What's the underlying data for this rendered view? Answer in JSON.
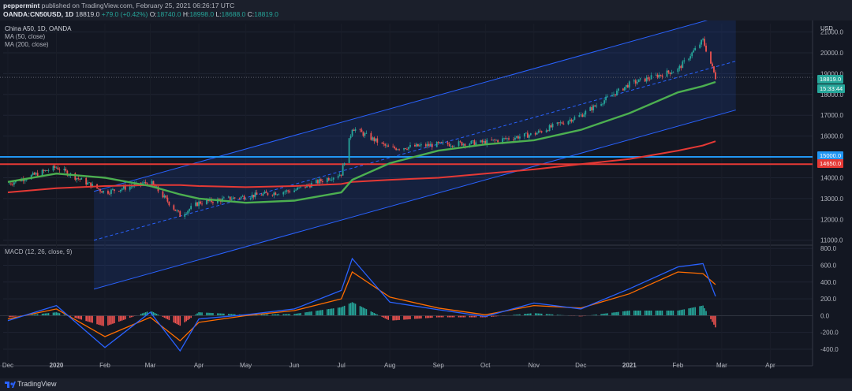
{
  "header": {
    "author": "peppermint",
    "published": "published on TradingView.com, February 25, 2021 06:26:17 UTC",
    "symbol_line": "OANDA:CN50USD, 1D",
    "last": "18819.0",
    "change": "+79.0 (+0.42%)",
    "o_label": "O:",
    "o_val": "18740.0",
    "h_label": "H:",
    "h_val": "18998.0",
    "l_label": "L:",
    "l_val": "18688.0",
    "c_label": "C:",
    "c_val": "18819.0"
  },
  "legend": {
    "main_title": "China A50, 1D, OANDA",
    "ma50": "MA (50, close)",
    "ma200": "MA (200, close)",
    "macd": "MACD (12, 26, close, 9)"
  },
  "price_tags": {
    "currency": "USD",
    "last": "18819.0",
    "countdown": "15:33:44",
    "level_a": "15000.0",
    "level_b": "14650.0"
  },
  "footer": {
    "brand": "TradingView"
  },
  "colors": {
    "background": "#131722",
    "up": "#26a69a",
    "down": "#ef5350",
    "ma50": "#4caf50",
    "ma200": "#e53935",
    "channel": "#2962ff",
    "level_a": "#2196f3",
    "level_b": "#e53935",
    "macd_line": "#2962ff",
    "signal_line": "#ff6d00"
  },
  "chart_data": [
    {
      "type": "line",
      "title": "China A50, 1D, OANDA",
      "x": [
        "2019-12",
        "2020-01",
        "2020-02",
        "2020-03",
        "2020-03-20",
        "2020-04",
        "2020-05",
        "2020-06",
        "2020-07",
        "2020-07-08",
        "2020-08",
        "2020-09",
        "2020-10",
        "2020-11",
        "2020-12",
        "2021-01",
        "2021-02",
        "2021-02-17",
        "2021-02-25"
      ],
      "series": [
        {
          "name": "China A50",
          "values": [
            13700,
            14500,
            13300,
            13800,
            12200,
            12800,
            13100,
            13400,
            14200,
            16400,
            15400,
            15600,
            15700,
            16100,
            17000,
            18500,
            19200,
            20600,
            18819
          ]
        },
        {
          "name": "MA (50, close)",
          "values": [
            13800,
            14200,
            14000,
            13600,
            13200,
            13000,
            12800,
            12900,
            13300,
            13900,
            14700,
            15300,
            15600,
            15800,
            16300,
            17100,
            18100,
            18400,
            18600
          ]
        },
        {
          "name": "MA (200, close)",
          "values": [
            13300,
            13500,
            13600,
            13650,
            13650,
            13600,
            13550,
            13600,
            13700,
            13800,
            13900,
            14000,
            14200,
            14400,
            14650,
            14900,
            15300,
            15550,
            15750
          ]
        }
      ],
      "y_ticks": [
        11000,
        12000,
        13000,
        14000,
        15000,
        16000,
        17000,
        18000,
        19000,
        20000,
        21000
      ],
      "ylim": [
        10800,
        21400
      ],
      "x_ticks": [
        "Dec",
        "2020",
        "Feb",
        "Mar",
        "Apr",
        "May",
        "Jun",
        "Jul",
        "Aug",
        "Sep",
        "Oct",
        "Nov",
        "Dec",
        "2021",
        "Feb",
        "Mar",
        "Apr"
      ],
      "levels": [
        15000.0,
        14650.0
      ],
      "last_value": 18819.0,
      "grid": true,
      "channel": true
    },
    {
      "type": "bar",
      "title": "MACD (12, 26, close, 9)",
      "x": [
        "2019-12",
        "2020-01",
        "2020-02",
        "2020-03",
        "2020-03-20",
        "2020-04",
        "2020-05",
        "2020-06",
        "2020-07",
        "2020-07-08",
        "2020-08",
        "2020-09",
        "2020-10",
        "2020-11",
        "2020-12",
        "2021-01",
        "2021-02",
        "2021-02-17",
        "2021-02-25"
      ],
      "series": [
        {
          "name": "MACD",
          "values": [
            -60,
            120,
            -380,
            40,
            -420,
            -40,
            10,
            80,
            300,
            680,
            160,
            70,
            -10,
            150,
            80,
            320,
            580,
            620,
            230
          ]
        },
        {
          "name": "Signal",
          "values": [
            -40,
            80,
            -250,
            -20,
            -300,
            -80,
            0,
            60,
            200,
            520,
            220,
            90,
            10,
            120,
            90,
            260,
            520,
            500,
            370
          ]
        },
        {
          "name": "Histogram",
          "values": [
            -20,
            40,
            -130,
            60,
            -120,
            40,
            10,
            20,
            100,
            160,
            -60,
            -20,
            -20,
            30,
            -10,
            60,
            60,
            120,
            -140
          ]
        }
      ],
      "y_ticks": [
        -400.0,
        -200.0,
        0.0,
        200.0,
        400.0,
        600.0,
        800.0
      ],
      "ylim": [
        -560,
        830
      ]
    }
  ]
}
